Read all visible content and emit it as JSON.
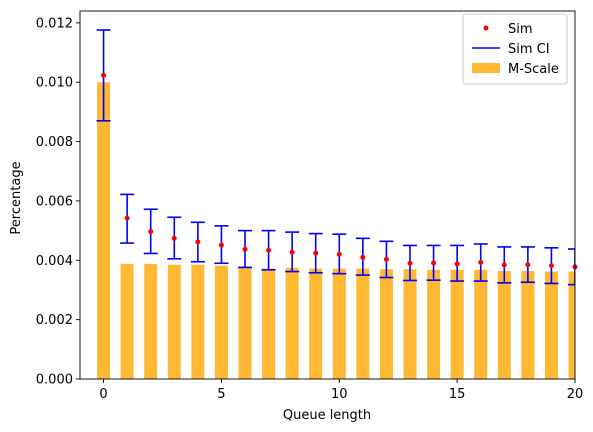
{
  "chart_data": {
    "type": "bar",
    "xlabel": "Queue length",
    "ylabel": "Percentage",
    "xlim": [
      -1,
      20
    ],
    "ylim": [
      0,
      0.0124
    ],
    "xticks": [
      0,
      5,
      10,
      15,
      20
    ],
    "xtick_labels": [
      "0",
      "5",
      "10",
      "15",
      "20"
    ],
    "yticks": [
      0,
      0.002,
      0.004,
      0.006,
      0.008,
      0.01,
      0.012
    ],
    "ytick_labels": [
      "0.000",
      "0.002",
      "0.004",
      "0.006",
      "0.008",
      "0.010",
      "0.012"
    ],
    "grid": false,
    "legend_position": "top-right",
    "colors": {
      "bar": "#ffb428",
      "point": "#ff0000",
      "ci": "#0000ff"
    },
    "x": [
      0,
      1,
      2,
      3,
      4,
      5,
      6,
      7,
      8,
      9,
      10,
      11,
      12,
      13,
      14,
      15,
      16,
      17,
      18,
      19,
      20
    ],
    "series": [
      {
        "name": "M-Scale",
        "kind": "bar",
        "values": [
          0.01,
          0.00388,
          0.00388,
          0.00385,
          0.00385,
          0.00382,
          0.00378,
          0.00372,
          0.00375,
          0.00372,
          0.00372,
          0.00372,
          0.0037,
          0.0037,
          0.00368,
          0.00368,
          0.00368,
          0.00364,
          0.00364,
          0.00362,
          0.00362
        ]
      },
      {
        "name": "Sim",
        "kind": "point",
        "values": [
          0.01023,
          0.00542,
          0.00497,
          0.00474,
          0.00462,
          0.00451,
          0.00437,
          0.00434,
          0.00427,
          0.00424,
          0.0042,
          0.0041,
          0.00403,
          0.0039,
          0.00391,
          0.00388,
          0.00393,
          0.00384,
          0.00385,
          0.00382,
          0.00378
        ]
      },
      {
        "name": "Sim CI",
        "kind": "errorbar",
        "lower": [
          0.0087,
          0.00458,
          0.00423,
          0.00405,
          0.00395,
          0.0039,
          0.00376,
          0.00368,
          0.00362,
          0.00358,
          0.00355,
          0.0035,
          0.00342,
          0.00332,
          0.00333,
          0.0033,
          0.0033,
          0.00324,
          0.00326,
          0.00322,
          0.00318
        ],
        "upper": [
          0.01176,
          0.00622,
          0.00572,
          0.00545,
          0.00528,
          0.00516,
          0.005,
          0.005,
          0.00495,
          0.0049,
          0.00488,
          0.00474,
          0.00464,
          0.0045,
          0.0045,
          0.0045,
          0.00455,
          0.00445,
          0.00445,
          0.00442,
          0.00438
        ]
      }
    ]
  }
}
